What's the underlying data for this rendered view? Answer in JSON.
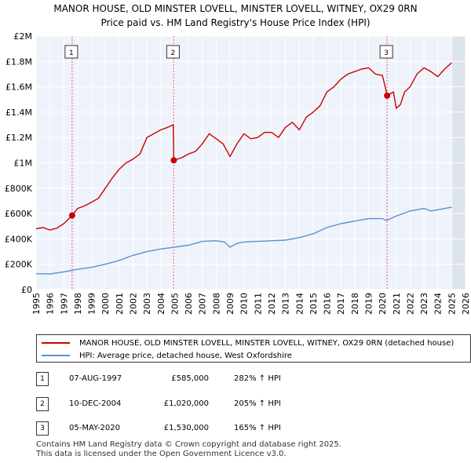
{
  "chart_data": {
    "type": "line",
    "title": "MANOR HOUSE, OLD MINSTER LOVELL, MINSTER LOVELL, WITNEY, OX29 0RN",
    "subtitle": "Price paid vs. HM Land Registry's House Price Index (HPI)",
    "xlim": [
      1995,
      2026
    ],
    "ylim": [
      0,
      2000000
    ],
    "x_ticks": [
      "1995",
      "1996",
      "1997",
      "1998",
      "1999",
      "2000",
      "2001",
      "2002",
      "2003",
      "2004",
      "2005",
      "2006",
      "2007",
      "2008",
      "2009",
      "2010",
      "2011",
      "2012",
      "2013",
      "2014",
      "2015",
      "2016",
      "2017",
      "2018",
      "2019",
      "2020",
      "2021",
      "2022",
      "2023",
      "2024",
      "2025",
      "2026"
    ],
    "y_ticks": [
      {
        "value": 0,
        "label": "£0"
      },
      {
        "value": 200000,
        "label": "£200K"
      },
      {
        "value": 400000,
        "label": "£400K"
      },
      {
        "value": 600000,
        "label": "£600K"
      },
      {
        "value": 800000,
        "label": "£800K"
      },
      {
        "value": 1000000,
        "label": "£1M"
      },
      {
        "value": 1200000,
        "label": "£1.2M"
      },
      {
        "value": 1400000,
        "label": "£1.4M"
      },
      {
        "value": 1600000,
        "label": "£1.6M"
      },
      {
        "value": 1800000,
        "label": "£1.8M"
      },
      {
        "value": 2000000,
        "label": "£2M"
      }
    ],
    "shaded_region": [
      2025.0,
      2026
    ],
    "series": [
      {
        "name": "MANOR HOUSE, OLD MINSTER LOVELL, MINSTER LOVELL, WITNEY, OX29 0RN (detached house)",
        "color": "#cc0000",
        "x": [
          1995.0,
          1995.5,
          1996.0,
          1996.5,
          1997.0,
          1997.6,
          1998.0,
          1998.5,
          1999.0,
          1999.5,
          2000.0,
          2000.5,
          2001.0,
          2001.5,
          2002.0,
          2002.5,
          2003.0,
          2003.5,
          2004.0,
          2004.5,
          2004.9,
          2004.94,
          2005.5,
          2006.0,
          2006.5,
          2007.0,
          2007.5,
          2008.0,
          2008.5,
          2009.0,
          2009.5,
          2010.0,
          2010.5,
          2011.0,
          2011.5,
          2012.0,
          2012.5,
          2013.0,
          2013.5,
          2014.0,
          2014.5,
          2015.0,
          2015.5,
          2016.0,
          2016.5,
          2017.0,
          2017.5,
          2018.0,
          2018.5,
          2019.0,
          2019.5,
          2020.0,
          2020.2,
          2020.34,
          2020.8,
          2021.0,
          2021.3,
          2021.6,
          2022.0,
          2022.5,
          2023.0,
          2023.5,
          2024.0,
          2024.5,
          2025.0
        ],
        "y": [
          480000,
          490000,
          470000,
          485000,
          520000,
          585000,
          640000,
          660000,
          690000,
          720000,
          800000,
          880000,
          950000,
          1000000,
          1030000,
          1070000,
          1200000,
          1230000,
          1260000,
          1280000,
          1300000,
          1020000,
          1040000,
          1070000,
          1090000,
          1150000,
          1230000,
          1190000,
          1150000,
          1050000,
          1150000,
          1230000,
          1190000,
          1200000,
          1240000,
          1240000,
          1200000,
          1280000,
          1320000,
          1260000,
          1360000,
          1400000,
          1450000,
          1560000,
          1600000,
          1660000,
          1700000,
          1720000,
          1740000,
          1750000,
          1700000,
          1690000,
          1600000,
          1530000,
          1560000,
          1430000,
          1460000,
          1560000,
          1600000,
          1700000,
          1750000,
          1720000,
          1680000,
          1740000,
          1790000
        ]
      },
      {
        "name": "HPI: Average price, detached house, West Oxfordshire",
        "color": "#5b8fd0",
        "x": [
          1995.0,
          1996.0,
          1997.0,
          1998.0,
          1999.0,
          2000.0,
          2001.0,
          2002.0,
          2003.0,
          2004.0,
          2005.0,
          2006.0,
          2007.0,
          2008.0,
          2008.6,
          2009.0,
          2009.5,
          2010.0,
          2011.0,
          2012.0,
          2013.0,
          2014.0,
          2015.0,
          2016.0,
          2017.0,
          2018.0,
          2019.0,
          2020.0,
          2020.3,
          2021.0,
          2021.5,
          2022.0,
          2022.5,
          2023.0,
          2023.5,
          2024.0,
          2025.0
        ],
        "y": [
          125000,
          123000,
          140000,
          160000,
          175000,
          200000,
          230000,
          270000,
          300000,
          320000,
          335000,
          350000,
          380000,
          385000,
          375000,
          335000,
          365000,
          375000,
          380000,
          385000,
          390000,
          410000,
          440000,
          490000,
          520000,
          540000,
          560000,
          560000,
          545000,
          580000,
          600000,
          620000,
          630000,
          640000,
          620000,
          630000,
          650000
        ]
      }
    ],
    "annotations": [
      {
        "label": "1",
        "x": 1997.6,
        "y": 585000
      },
      {
        "label": "2",
        "x": 2004.94,
        "y": 1020000
      },
      {
        "label": "3",
        "x": 2020.34,
        "y": 1530000
      }
    ]
  },
  "legend": {
    "entries": [
      {
        "label": "MANOR HOUSE, OLD MINSTER LOVELL, MINSTER LOVELL, WITNEY, OX29 0RN (detached house)",
        "color": "#cc0000"
      },
      {
        "label": "HPI: Average price, detached house, West Oxfordshire",
        "color": "#5b8fd0"
      }
    ]
  },
  "sales": [
    {
      "num": "1",
      "date": "07-AUG-1997",
      "price": "£585,000",
      "hpi": "282% ↑ HPI"
    },
    {
      "num": "2",
      "date": "10-DEC-2004",
      "price": "£1,020,000",
      "hpi": "205% ↑ HPI"
    },
    {
      "num": "3",
      "date": "05-MAY-2020",
      "price": "£1,530,000",
      "hpi": "165% ↑ HPI"
    }
  ],
  "footer": {
    "line1": "Contains HM Land Registry data © Crown copyright and database right 2025.",
    "line2": "This data is licensed under the Open Government Licence v3.0."
  }
}
